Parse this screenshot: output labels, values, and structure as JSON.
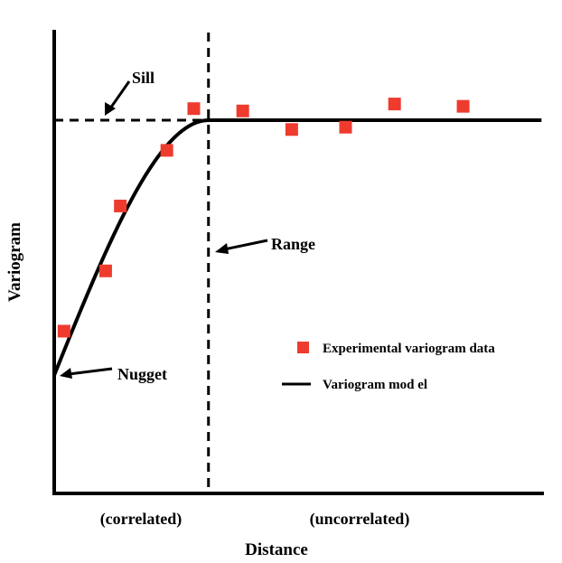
{
  "chart_data": {
    "type": "scatter",
    "xlabel": "Distance",
    "ylabel": "Variogram",
    "xlim": [
      0,
      10
    ],
    "ylim": [
      0,
      10
    ],
    "grid": false,
    "legend_position": "right",
    "series": [
      {
        "name": "Experimental variogram data",
        "kind": "scatter",
        "color": "#ee3b2e",
        "x": [
          0.2,
          1.05,
          1.35,
          2.3,
          2.85,
          3.85,
          4.85,
          5.95,
          6.95,
          8.35
        ],
        "y": [
          3.5,
          4.8,
          6.2,
          7.4,
          8.3,
          8.25,
          7.85,
          7.9,
          8.4,
          8.35
        ]
      },
      {
        "name": "Variogram model",
        "kind": "line",
        "color": "#000000",
        "model": "spherical",
        "nugget": 2.55,
        "sill": 8.05,
        "range": 3.15,
        "xmax": 9.95
      }
    ],
    "reference_lines": {
      "sill_y": 8.05,
      "range_x": 3.15
    },
    "annotations": [
      {
        "key": "sill",
        "text": "Sill"
      },
      {
        "key": "range",
        "text": "Range"
      },
      {
        "key": "nugget",
        "text": "Nugget"
      }
    ],
    "region_labels": [
      {
        "key": "correlated",
        "text": "(correlated)"
      },
      {
        "key": "uncorrelated",
        "text": "(uncorrelated)"
      }
    ],
    "legend": [
      {
        "key": "data",
        "text": "Experimental variogram data"
      },
      {
        "key": "model",
        "text": "Variogram mod el"
      }
    ]
  }
}
